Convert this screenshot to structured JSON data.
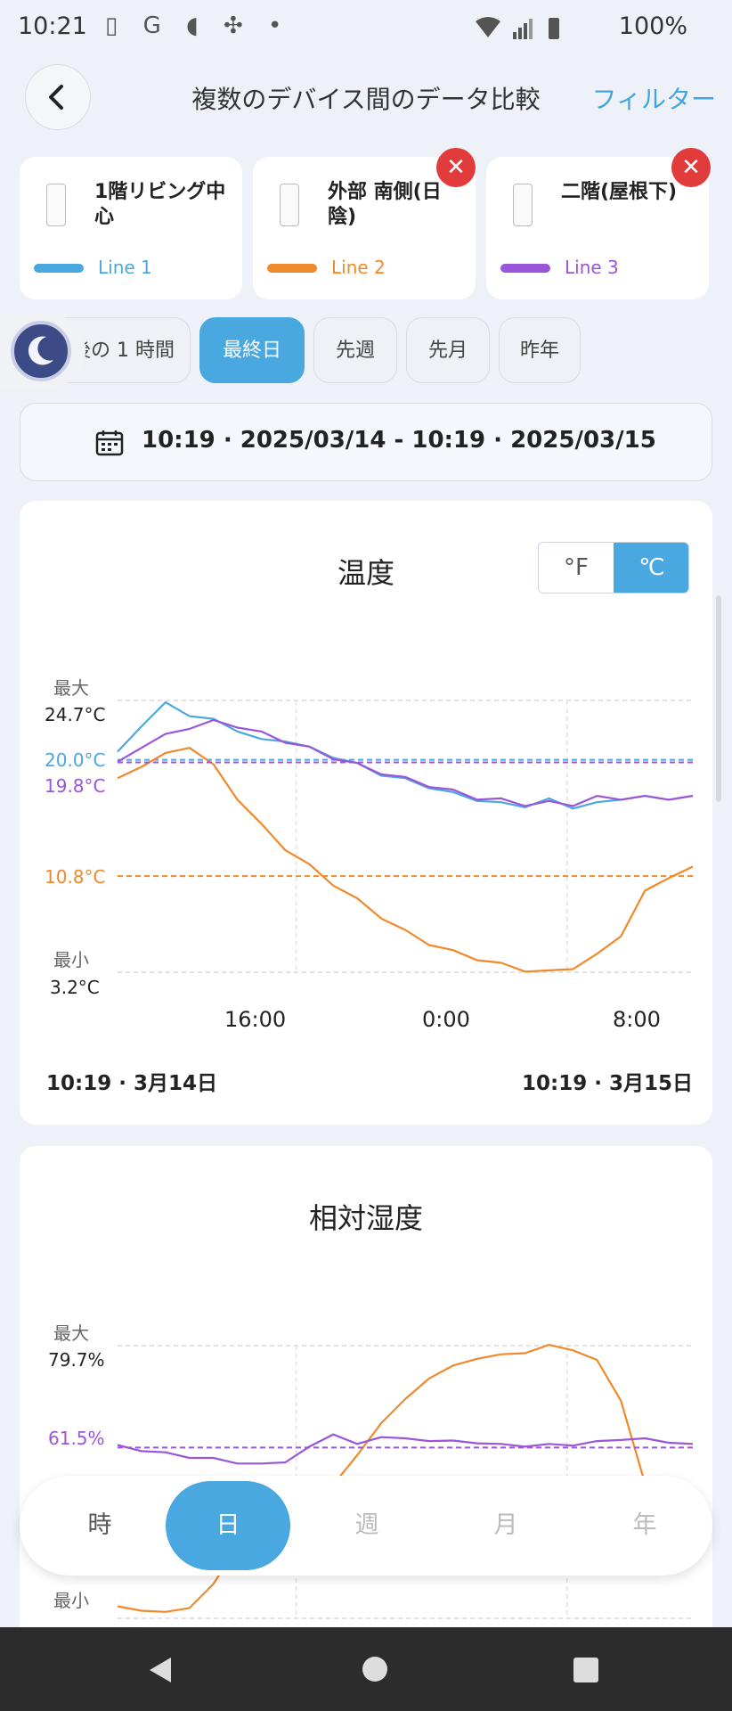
{
  "status_bar": {
    "time": "10:21",
    "icons": "▯ G ◖ ✣ •",
    "battery": "100%"
  },
  "header": {
    "title": "複数のデバイス間のデータ比較",
    "filter": "フィルター"
  },
  "colors": {
    "line1": "#4aa8e0",
    "line2": "#f0892a",
    "line3": "#9a55d8",
    "accent": "#4aa8e0"
  },
  "devices": [
    {
      "name": "1階リビング中心",
      "line": "Line 1",
      "removable": false
    },
    {
      "name": "外部 南側(日陰)",
      "line": "Line 2",
      "removable": true
    },
    {
      "name": "二階(屋根下)",
      "line": "Line 3",
      "removable": true
    }
  ],
  "range_tabs": [
    "最後の 1 時間",
    "最終日",
    "先週",
    "先月",
    "昨年"
  ],
  "range_tabs_active": "最終日",
  "date_range": "10:19 · 2025/03/14 - 10:19 · 2025/03/15",
  "temperature": {
    "title": "温度",
    "unit_f": "°F",
    "unit_c": "℃",
    "unit_selected": "℃",
    "max_label": "最大",
    "max_value": "24.7°C",
    "min_label": "最小",
    "min_value": "3.2°C",
    "avg_labels": [
      {
        "series": "Line 1",
        "value": "20.0°C"
      },
      {
        "series": "Line 3",
        "value": "19.8°C"
      },
      {
        "series": "Line 2",
        "value": "10.8°C"
      }
    ],
    "x_ticks": [
      "16:00",
      "0:00",
      "8:00"
    ],
    "start_label": "10:19 · 3月14日",
    "end_label": "10:19 · 3月15日"
  },
  "humidity": {
    "title": "相対湿度",
    "max_label": "最大",
    "max_value": "79.7%",
    "min_label": "最小",
    "avg_labels": [
      {
        "series": "Line 3",
        "value": "61.5%"
      }
    ]
  },
  "chart_data": [
    {
      "type": "line",
      "title": "温度",
      "ylabel": "°C",
      "ylim": [
        3.2,
        24.7
      ],
      "x_hours": [
        0,
        1,
        2,
        3,
        4,
        5,
        6,
        7,
        8,
        9,
        10,
        11,
        12,
        13,
        14,
        15,
        16,
        17,
        18,
        19,
        20,
        21,
        22,
        23,
        24
      ],
      "series": [
        {
          "name": "Line 1",
          "values": [
            20.5,
            22.8,
            24.4,
            23.6,
            23.1,
            22.4,
            21.5,
            21.6,
            20.9,
            20.3,
            19.6,
            18.9,
            18.4,
            17.9,
            17.3,
            16.9,
            16.5,
            16.4,
            16.8,
            16.3,
            16.5,
            17.0,
            17.0,
            17.0,
            17.0
          ],
          "mean": 20.0
        },
        {
          "name": "Line 2",
          "values": [
            18.4,
            19.6,
            20.4,
            21.1,
            19.5,
            17.0,
            14.8,
            13.0,
            11.6,
            10.2,
            8.9,
            7.6,
            6.4,
            5.5,
            4.8,
            4.3,
            3.8,
            3.4,
            3.2,
            3.6,
            4.5,
            6.2,
            9.5,
            10.8,
            11.4
          ],
          "mean": 10.8
        },
        {
          "name": "Line 3",
          "values": [
            19.7,
            21.1,
            21.9,
            22.6,
            23.0,
            22.7,
            22.1,
            21.5,
            20.9,
            20.2,
            19.6,
            19.0,
            18.5,
            18.0,
            17.5,
            17.0,
            16.8,
            16.5,
            16.6,
            16.5,
            17.0,
            17.0,
            17.0,
            17.0,
            17.0
          ],
          "mean": 19.8
        }
      ],
      "x_tick_labels": [
        "16:00",
        "0:00",
        "8:00"
      ]
    },
    {
      "type": "line",
      "title": "相対湿度",
      "ylabel": "%",
      "ylim": [
        31.0,
        79.7
      ],
      "x_hours": [
        0,
        1,
        2,
        3,
        4,
        5,
        6,
        7,
        8,
        9,
        10,
        11,
        12,
        13,
        14,
        15,
        16,
        17,
        18,
        19,
        20,
        21,
        22,
        23,
        24
      ],
      "series": [
        {
          "name": "Line 2",
          "values": [
            33.0,
            32.5,
            32.0,
            33.0,
            37.0,
            44.0,
            48.0,
            50.0,
            52.0,
            55.0,
            60.0,
            66.0,
            70.0,
            74.0,
            76.0,
            77.5,
            78.0,
            78.5,
            79.7,
            79.0,
            77.0,
            70.0,
            55.0,
            48.0,
            47.0
          ]
        },
        {
          "name": "Line 3",
          "values": [
            61.8,
            61.0,
            60.5,
            59.8,
            59.5,
            58.8,
            58.5,
            59.0,
            61.5,
            64.0,
            62.0,
            63.5,
            63.0,
            62.8,
            62.6,
            62.4,
            62.0,
            61.8,
            62.0,
            62.0,
            62.5,
            63.0,
            63.0,
            62.5,
            62.0
          ],
          "mean": 61.5
        }
      ]
    }
  ],
  "bottom_nav": [
    "時",
    "日",
    "週",
    "月",
    "年"
  ],
  "bottom_nav_active": "日"
}
